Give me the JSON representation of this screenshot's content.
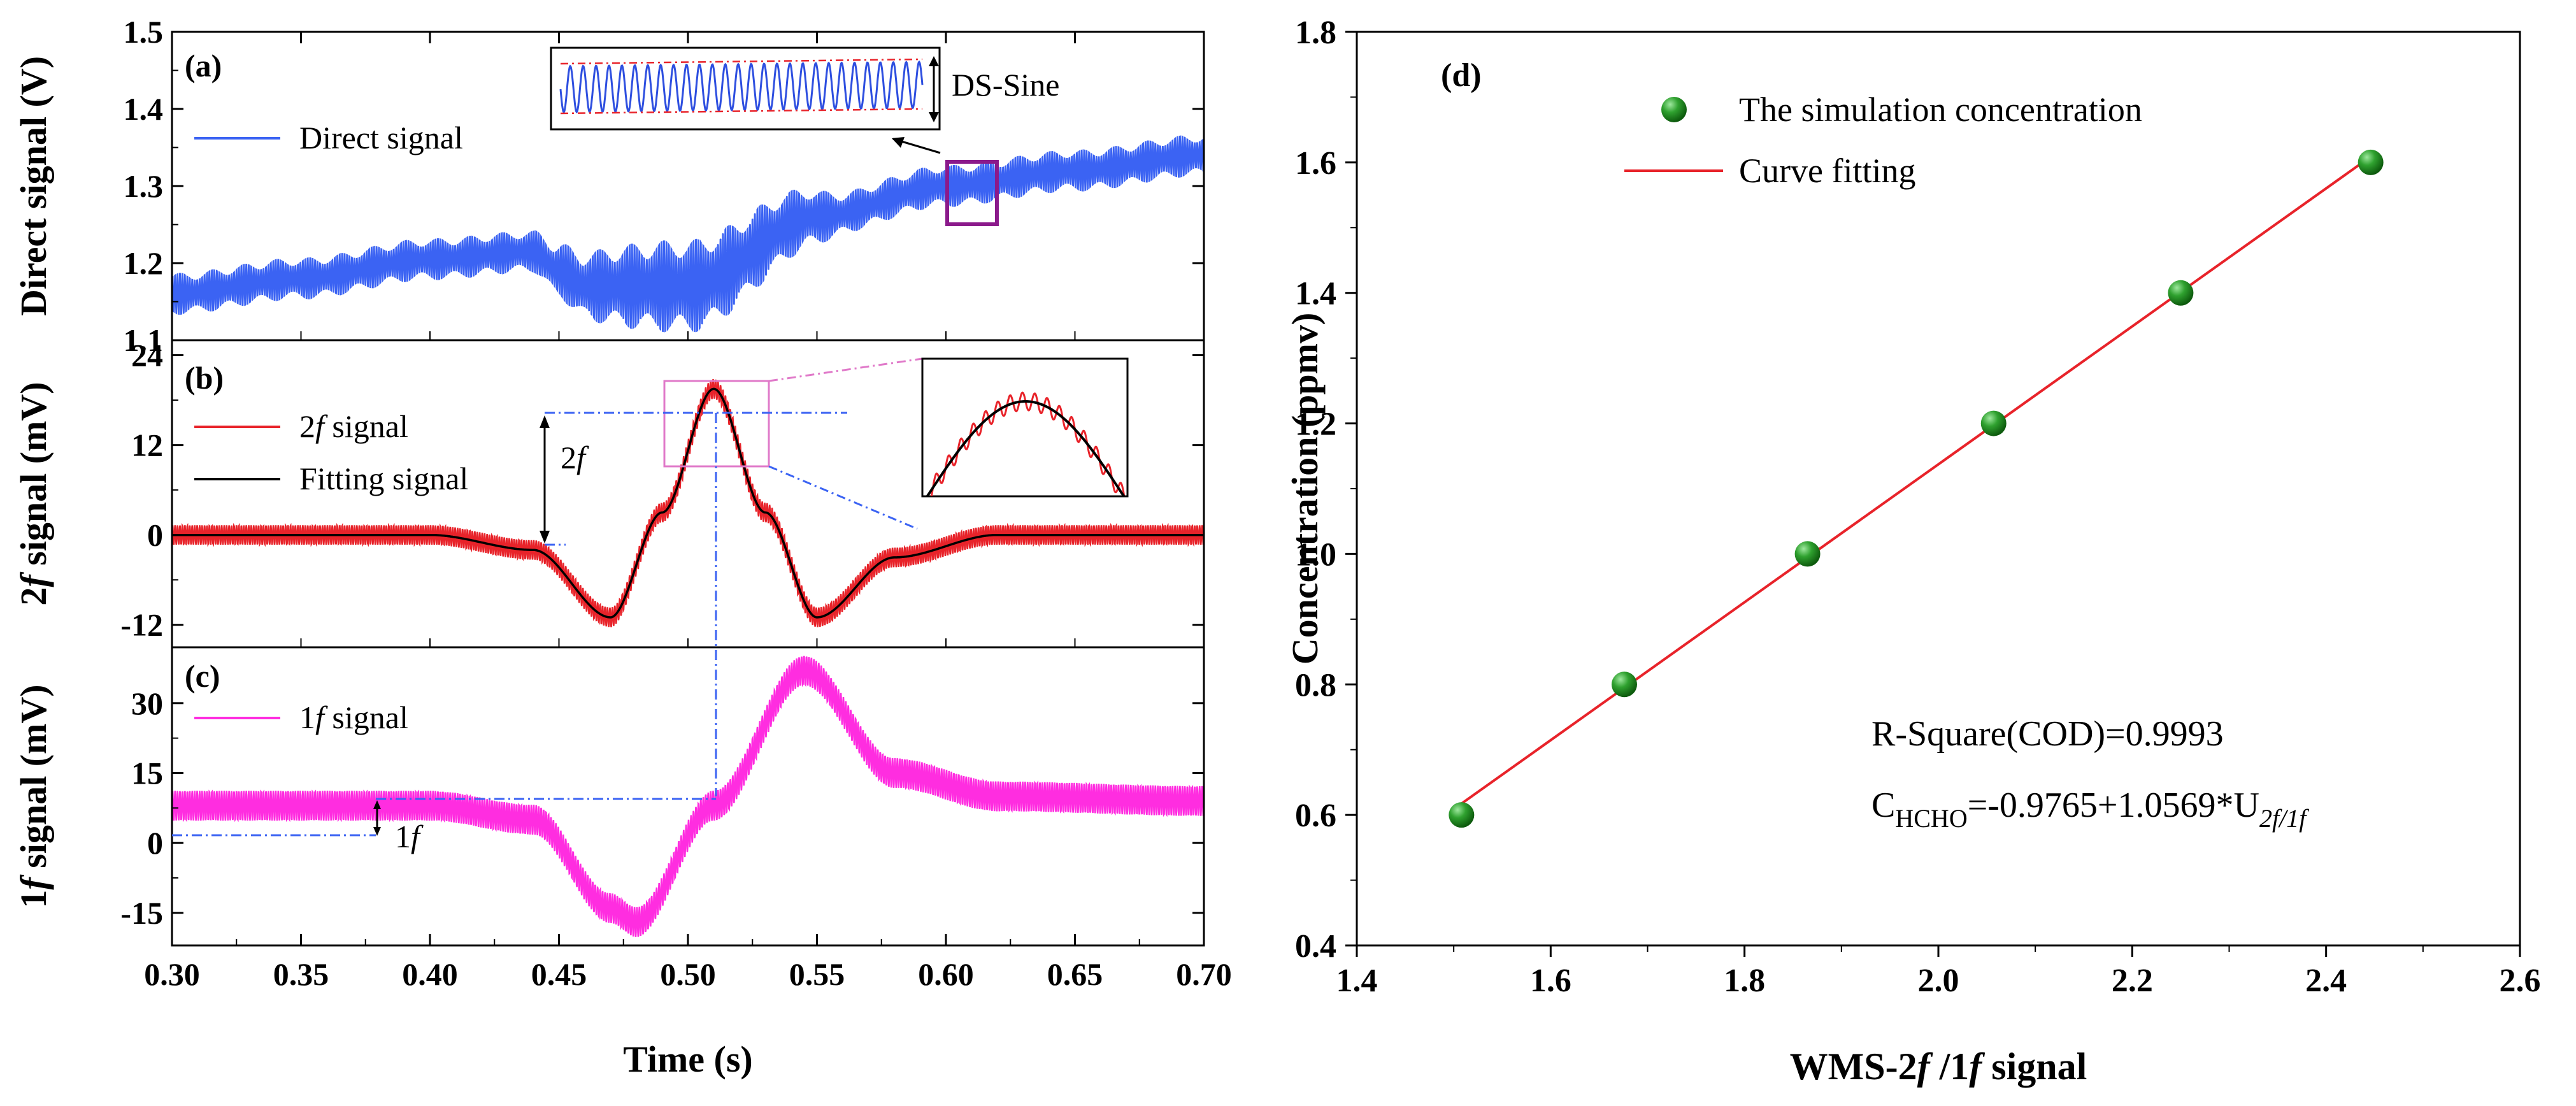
{
  "chart_data": [
    {
      "type": "line",
      "panel_label": "(a)",
      "ylabel": "Direct signal (V)",
      "xlabel": "Time (s)",
      "xlim": [
        0.3,
        0.7
      ],
      "ylim": [
        1.1,
        1.5
      ],
      "yticks": [
        "1.1",
        "1.2",
        "1.3",
        "1.4",
        "1.5"
      ],
      "series": [
        {
          "name": "Direct signal",
          "color": "#3b63f3",
          "x": [
            0.3,
            0.35,
            0.4,
            0.44,
            0.45,
            0.46,
            0.5,
            0.55,
            0.6,
            0.65,
            0.7
          ],
          "y": [
            1.16,
            1.18,
            1.205,
            1.215,
            1.19,
            1.17,
            1.17,
            1.26,
            1.3,
            1.32,
            1.34
          ]
        }
      ],
      "annotations": [
        "DS-Sine"
      ]
    },
    {
      "type": "line",
      "panel_label": "(b)",
      "ylabel": "2f signal (mV)",
      "xlim": [
        0.3,
        0.7
      ],
      "ylim": [
        -15,
        26
      ],
      "yticks": [
        "-12",
        "0",
        "12",
        "24"
      ],
      "series": [
        {
          "name": "2f signal",
          "label_pre": "2",
          "label_it": "f",
          "label_post": " signal",
          "color": "#e8232a",
          "x": [
            0.3,
            0.4,
            0.44,
            0.47,
            0.49,
            0.51,
            0.53,
            0.55,
            0.58,
            0.62,
            0.7
          ],
          "y": [
            0,
            0,
            -2,
            -11,
            3,
            19.5,
            3,
            -11,
            -3,
            0,
            0
          ]
        },
        {
          "name": "Fitting signal",
          "label_pre": "Fitting signal",
          "label_it": "",
          "label_post": "",
          "color": "#000000",
          "x": [
            0.3,
            0.4,
            0.44,
            0.47,
            0.49,
            0.51,
            0.53,
            0.55,
            0.58,
            0.62,
            0.7
          ],
          "y": [
            0,
            0,
            -2,
            -11,
            3,
            19.5,
            3,
            -11,
            -3,
            0,
            0
          ]
        }
      ],
      "annotations": [
        "2f"
      ]
    },
    {
      "type": "line",
      "panel_label": "(c)",
      "ylabel": "1f signal (mV)",
      "xlim": [
        0.3,
        0.7
      ],
      "ylim": [
        -22,
        42
      ],
      "yticks": [
        "-15",
        "0",
        "15",
        "30"
      ],
      "series": [
        {
          "name": "1f signal",
          "label_pre": "1",
          "label_it": "f",
          "label_post": " signal",
          "color": "#ff2de0",
          "x": [
            0.3,
            0.4,
            0.44,
            0.47,
            0.48,
            0.51,
            0.545,
            0.58,
            0.62,
            0.7
          ],
          "y": [
            8,
            8,
            5,
            -14,
            -17,
            8,
            37,
            15,
            10,
            9
          ]
        }
      ],
      "annotations": [
        "1f"
      ]
    },
    {
      "type": "scatter",
      "panel_label": "(d)",
      "title": "",
      "xlabel": "WMS-2f /1f  signal",
      "ylabel": "Concentration (ppmv)",
      "xlim": [
        1.4,
        2.6
      ],
      "ylim": [
        0.4,
        1.8
      ],
      "xticks": [
        "1.4",
        "1.6",
        "1.8",
        "2.0",
        "2.2",
        "2.4",
        "2.6"
      ],
      "yticks": [
        "0.4",
        "0.6",
        "0.8",
        "1.0",
        "1.2",
        "1.4",
        "1.6",
        "1.8"
      ],
      "series": [
        {
          "name": "The simulation concentration",
          "color": "#1e8a1e",
          "x": [
            1.508,
            1.676,
            1.865,
            2.057,
            2.25,
            2.446
          ],
          "y": [
            0.6,
            0.8,
            1.0,
            1.2,
            1.4,
            1.6
          ]
        },
        {
          "name": "Curve fitting",
          "color": "#e8232a",
          "intercept": -0.9765,
          "slope": 1.0569,
          "xrange": [
            1.508,
            2.446
          ]
        }
      ],
      "annotations": [
        "R-Square(COD)=0.9993",
        "C_HCHO=-0.9765+1.0569*U_2f/1f"
      ]
    }
  ],
  "left_xticks": [
    "0.30",
    "0.35",
    "0.40",
    "0.45",
    "0.50",
    "0.55",
    "0.60",
    "0.65",
    "0.70"
  ],
  "rsq_text": "R-Square(COD)=0.9993",
  "eq_c": "C",
  "eq_sub1": "HCHO",
  "eq_mid": "=-0.9765+1.0569*U",
  "eq_sub2": "2f/1f",
  "d_xlabel_a": "WMS-2",
  "d_xlabel_b": "f",
  "d_xlabel_c": " /1",
  "d_xlabel_d": "f",
  "d_xlabel_e": "  signal",
  "left_xlabel": "Time (s)",
  "ds_sine": "DS-Sine",
  "ann_2f_a": "2",
  "ann_2f_b": "f",
  "ann_1f_a": "1",
  "ann_1f_b": "f",
  "ylab_a": "Direct signal (V)",
  "ylab_b_1": "2",
  "ylab_b_2": "f",
  "ylab_b_3": " signal (mV)",
  "ylab_c_1": "1",
  "ylab_c_2": "f",
  "ylab_c_3": " signal (mV)"
}
